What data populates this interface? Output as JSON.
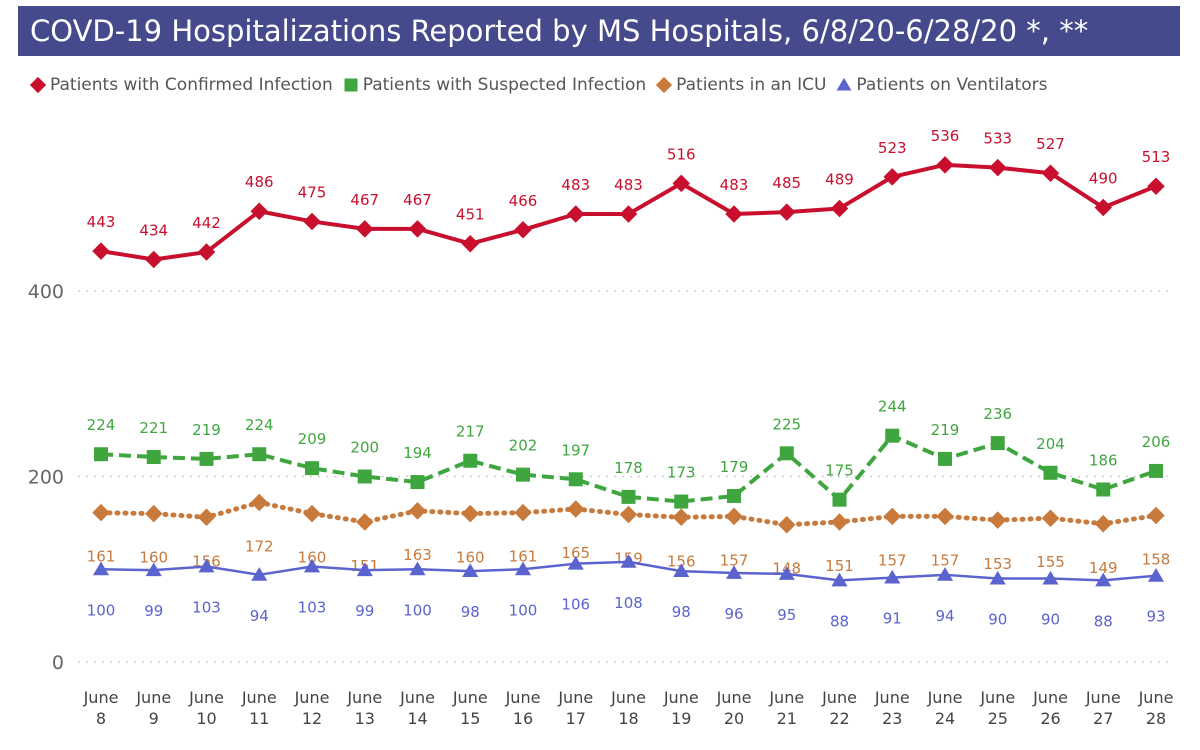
{
  "chart_data": {
    "type": "line",
    "title": "COVD-19 Hospitalizations Reported by MS Hospitals, 6/8/20-6/28/20 *, **",
    "legend_position": "top",
    "grid": true,
    "ylim": [
      0,
      560
    ],
    "yticks": [
      0,
      200,
      400
    ],
    "categories": [
      "June 8",
      "June 9",
      "June 10",
      "June 11",
      "June 12",
      "June 13",
      "June 14",
      "June 15",
      "June 16",
      "June 17",
      "June 18",
      "June 19",
      "June 20",
      "June 21",
      "June 22",
      "June 23",
      "June 24",
      "June 25",
      "June 26",
      "June 27",
      "June 28"
    ],
    "series": [
      {
        "name": "Patients with Confirmed Infection",
        "color": "#c8102e",
        "marker": "diamond",
        "dash": "solid",
        "label_position": "above",
        "values": [
          443,
          434,
          442,
          486,
          475,
          467,
          467,
          451,
          466,
          483,
          483,
          516,
          483,
          485,
          489,
          523,
          536,
          533,
          527,
          490,
          513
        ]
      },
      {
        "name": "Patients with Suspected Infection",
        "color": "#3fa63f",
        "marker": "square",
        "dash": "dashed",
        "label_position": "above",
        "values": [
          224,
          221,
          219,
          224,
          209,
          200,
          194,
          217,
          202,
          197,
          178,
          173,
          179,
          225,
          175,
          244,
          219,
          236,
          204,
          186,
          206
        ]
      },
      {
        "name": "Patients in an ICU",
        "color": "#c87a3c",
        "marker": "diamond",
        "dash": "dotted",
        "label_position": "below",
        "values": [
          161,
          160,
          156,
          172,
          160,
          151,
          163,
          160,
          161,
          165,
          159,
          156,
          157,
          148,
          151,
          157,
          157,
          153,
          155,
          149,
          158
        ]
      },
      {
        "name": "Patients on Ventilators",
        "color": "#5b63cf",
        "marker": "triangle",
        "dash": "solid",
        "label_position": "below",
        "values": [
          100,
          99,
          103,
          94,
          103,
          99,
          100,
          98,
          100,
          106,
          108,
          98,
          96,
          95,
          88,
          91,
          94,
          90,
          90,
          88,
          93
        ]
      }
    ]
  }
}
